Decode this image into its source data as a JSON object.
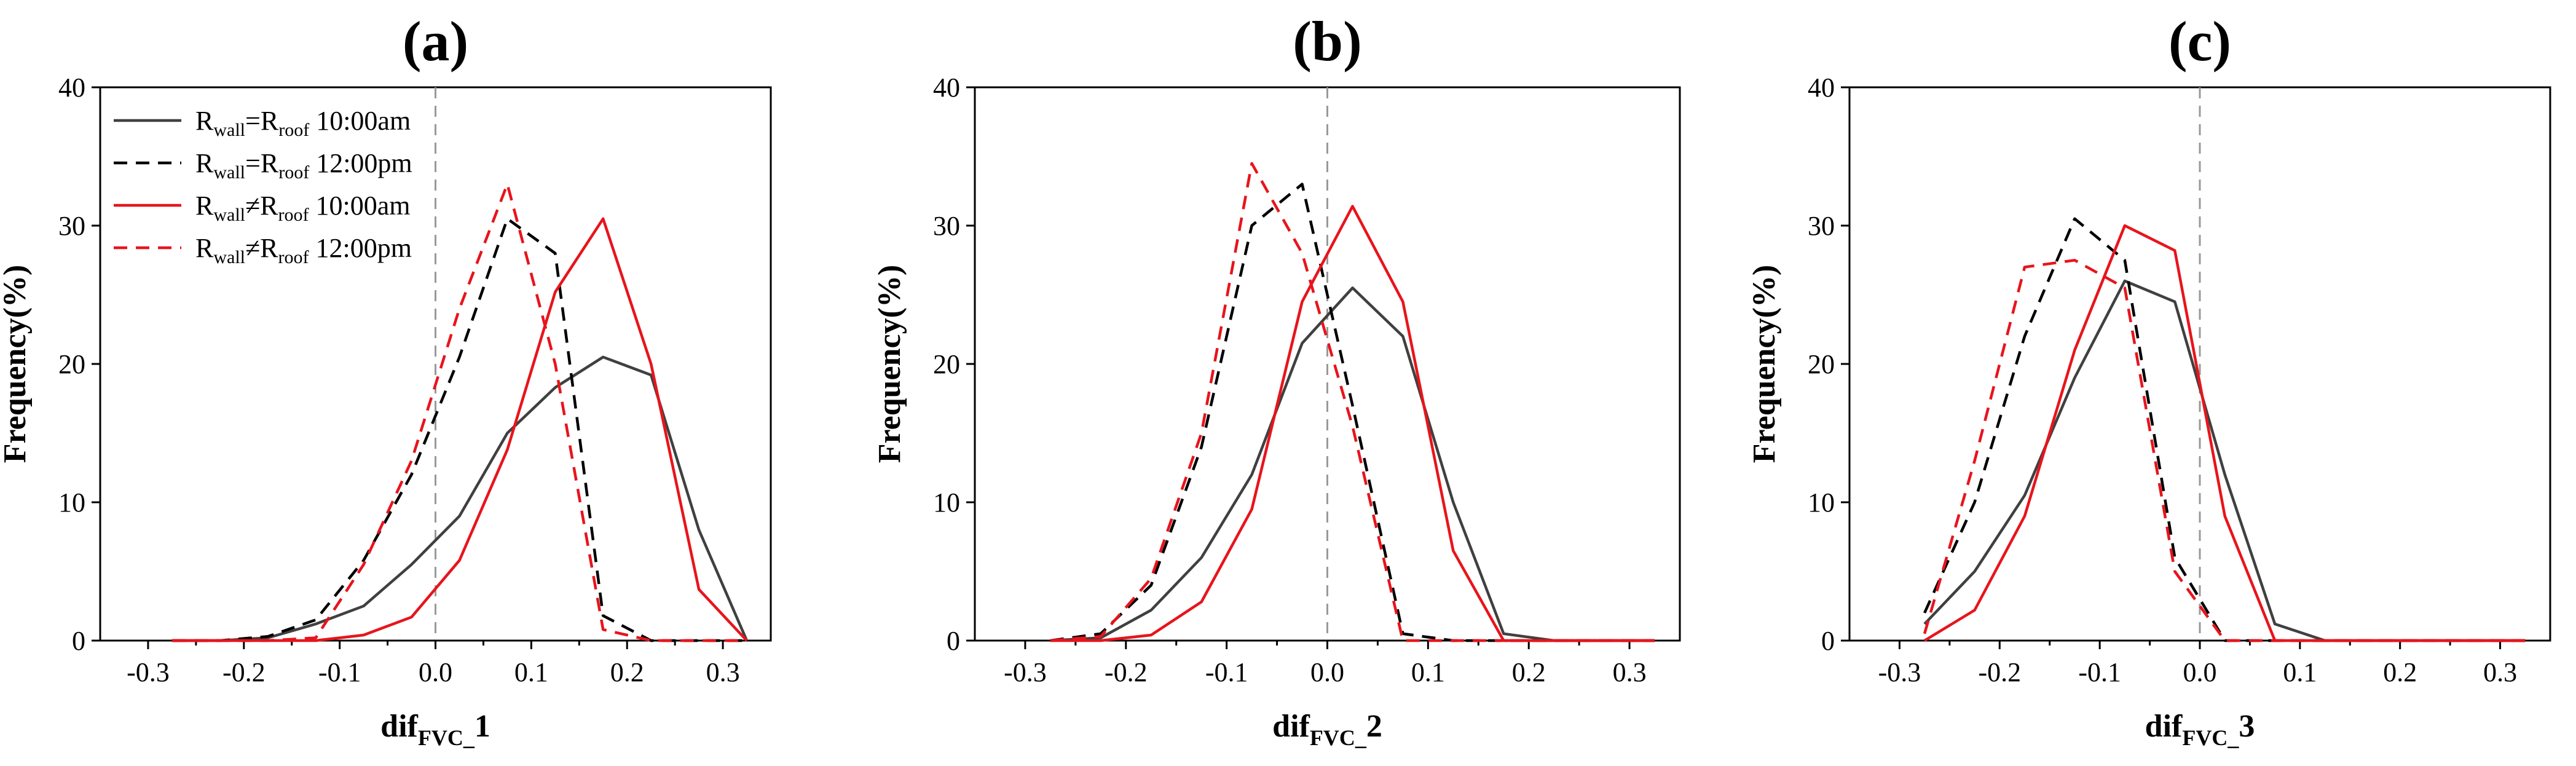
{
  "chart_data": [
    {
      "type": "line",
      "title": "(a)",
      "xlabel_main": "dif",
      "xlabel_sub": "FVC_",
      "xlabel_suffix": "1",
      "ylabel": "Frequency(%)",
      "xlim": [
        -0.35,
        0.35
      ],
      "ylim": [
        0,
        40
      ],
      "x_ticks": [
        -0.3,
        -0.2,
        -0.1,
        0.0,
        0.1,
        0.2,
        0.3
      ],
      "x_tick_labels": [
        "-0.3",
        "-0.2",
        "-0.1",
        "0.0",
        "0.1",
        "0.2",
        "0.3"
      ],
      "y_ticks": [
        0,
        10,
        20,
        30,
        40
      ],
      "y_tick_labels": [
        "0",
        "10",
        "20",
        "30",
        "40"
      ],
      "reference_line_x": 0.0,
      "x": [
        -0.275,
        -0.225,
        -0.175,
        -0.125,
        -0.075,
        -0.025,
        0.025,
        0.075,
        0.125,
        0.175,
        0.225,
        0.275,
        0.325
      ],
      "series": [
        {
          "name": "R_wall=R_roof 10:00am",
          "color": "#404040",
          "dash": "solid",
          "values": [
            0,
            0,
            0.2,
            1.2,
            2.5,
            5.5,
            9.0,
            15.0,
            18.3,
            20.5,
            19.2,
            8.0,
            0
          ]
        },
        {
          "name": "R_wall=R_roof 12:00pm",
          "color": "#000000",
          "dash": "dashed",
          "values": [
            0,
            0,
            0.3,
            1.5,
            5.8,
            12.0,
            20.5,
            30.5,
            28.0,
            1.8,
            0,
            0,
            0
          ]
        },
        {
          "name": "R_wall≠R_roof 10:00am",
          "color": "#e8141c",
          "dash": "solid",
          "values": [
            0,
            0,
            0,
            0,
            0.4,
            1.7,
            5.8,
            13.8,
            25.2,
            30.5,
            20.0,
            3.7,
            0
          ]
        },
        {
          "name": "R_wall≠R_roof 12:00pm",
          "color": "#e8141c",
          "dash": "dashed",
          "values": [
            0,
            0,
            0,
            0.2,
            5.5,
            13.0,
            24.0,
            33.0,
            20.0,
            0.8,
            0,
            0,
            0
          ]
        }
      ]
    },
    {
      "type": "line",
      "title": "(b)",
      "xlabel_main": "dif",
      "xlabel_sub": "FVC_",
      "xlabel_suffix": "2",
      "ylabel": "Frequency(%)",
      "xlim": [
        -0.35,
        0.35
      ],
      "ylim": [
        0,
        40
      ],
      "x_ticks": [
        -0.3,
        -0.2,
        -0.1,
        0.0,
        0.1,
        0.2,
        0.3
      ],
      "x_tick_labels": [
        "-0.3",
        "-0.2",
        "-0.1",
        "0.0",
        "0.1",
        "0.2",
        "0.3"
      ],
      "y_ticks": [
        0,
        10,
        20,
        30,
        40
      ],
      "y_tick_labels": [
        "0",
        "10",
        "20",
        "30",
        "40"
      ],
      "reference_line_x": 0.0,
      "x": [
        -0.275,
        -0.225,
        -0.175,
        -0.125,
        -0.075,
        -0.025,
        0.025,
        0.075,
        0.125,
        0.175,
        0.225,
        0.275,
        0.325
      ],
      "series": [
        {
          "name": "R_wall=R_roof 10:00am",
          "color": "#404040",
          "dash": "solid",
          "values": [
            0,
            0.2,
            2.2,
            6.0,
            12.0,
            21.5,
            25.5,
            22.0,
            10.0,
            0.5,
            0,
            0,
            0
          ]
        },
        {
          "name": "R_wall=R_roof 12:00pm",
          "color": "#000000",
          "dash": "dashed",
          "values": [
            0,
            0.5,
            4.0,
            14.0,
            30.0,
            33.0,
            17.0,
            0.5,
            0,
            0,
            0,
            0,
            0
          ]
        },
        {
          "name": "R_wall≠R_roof 10:00am",
          "color": "#e8141c",
          "dash": "solid",
          "values": [
            0,
            0,
            0.4,
            2.8,
            9.5,
            24.5,
            31.4,
            24.5,
            6.5,
            0,
            0,
            0,
            0
          ]
        },
        {
          "name": "R_wall≠R_roof 12:00pm",
          "color": "#e8141c",
          "dash": "dashed",
          "values": [
            0,
            0.3,
            4.5,
            15.0,
            34.5,
            28.0,
            15.5,
            0,
            0,
            0,
            0,
            0,
            0
          ]
        }
      ]
    },
    {
      "type": "line",
      "title": "(c)",
      "xlabel_main": "dif",
      "xlabel_sub": "FVC_",
      "xlabel_suffix": "3",
      "ylabel": "Frequency(%)",
      "xlim": [
        -0.35,
        0.35
      ],
      "ylim": [
        0,
        40
      ],
      "x_ticks": [
        -0.3,
        -0.2,
        -0.1,
        0.0,
        0.1,
        0.2,
        0.3
      ],
      "x_tick_labels": [
        "-0.3",
        "-0.2",
        "-0.1",
        "0.0",
        "0.1",
        "0.2",
        "0.3"
      ],
      "y_ticks": [
        0,
        10,
        20,
        30,
        40
      ],
      "y_tick_labels": [
        "0",
        "10",
        "20",
        "30",
        "40"
      ],
      "reference_line_x": 0.0,
      "x": [
        -0.275,
        -0.225,
        -0.175,
        -0.125,
        -0.075,
        -0.025,
        0.025,
        0.075,
        0.125,
        0.175,
        0.225,
        0.275,
        0.325
      ],
      "series": [
        {
          "name": "R_wall=R_roof 10:00am",
          "color": "#404040",
          "dash": "solid",
          "values": [
            1.2,
            5.0,
            10.5,
            19.0,
            26.0,
            24.5,
            12.0,
            1.2,
            0,
            0,
            0,
            0,
            0
          ]
        },
        {
          "name": "R_wall=R_roof 12:00pm",
          "color": "#000000",
          "dash": "dashed",
          "values": [
            2.0,
            10.0,
            22.0,
            30.5,
            27.5,
            6.0,
            0,
            0,
            0,
            0,
            0,
            0,
            0
          ]
        },
        {
          "name": "R_wall≠R_roof 10:00am",
          "color": "#e8141c",
          "dash": "solid",
          "values": [
            0,
            2.2,
            9.0,
            21.0,
            30.0,
            28.2,
            9.0,
            0,
            0,
            0,
            0,
            0,
            0
          ]
        },
        {
          "name": "R_wall≠R_roof 12:00pm",
          "color": "#e8141c",
          "dash": "dashed",
          "values": [
            0.5,
            13.0,
            27.0,
            27.5,
            25.5,
            5.0,
            0,
            0,
            0,
            0,
            0,
            0,
            0
          ]
        }
      ]
    }
  ],
  "legend": {
    "entries": [
      {
        "main1": "R",
        "sub1": "wall",
        "op": "=",
        "main2": "R",
        "sub2": "roof",
        "time": " 10:00am",
        "color": "#404040",
        "dash": "solid"
      },
      {
        "main1": "R",
        "sub1": "wall",
        "op": "=",
        "main2": "R",
        "sub2": "roof",
        "time": " 12:00pm",
        "color": "#000000",
        "dash": "dashed"
      },
      {
        "main1": "R",
        "sub1": "wall",
        "op": "≠",
        "main2": "R",
        "sub2": "roof",
        "time": " 10:00am",
        "color": "#e8141c",
        "dash": "solid"
      },
      {
        "main1": "R",
        "sub1": "wall",
        "op": "≠",
        "main2": "R",
        "sub2": "roof",
        "time": " 12:00pm",
        "color": "#e8141c",
        "dash": "dashed"
      }
    ]
  },
  "colors": {
    "axis": "#000000",
    "reference_line": "#999999"
  }
}
